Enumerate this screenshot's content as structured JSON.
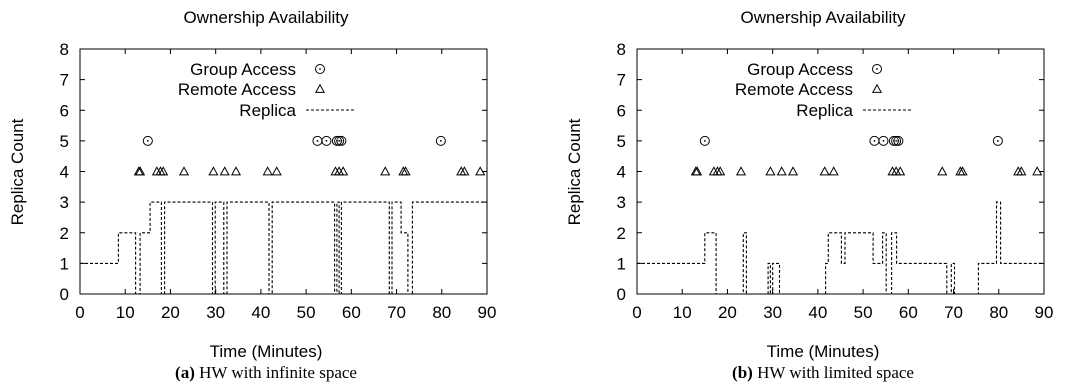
{
  "figure": {
    "panels": [
      {
        "caption_label": "(a)",
        "caption_text": "HW with infinite space"
      },
      {
        "caption_label": "(b)",
        "caption_text": "HW with limited space"
      }
    ]
  },
  "chart_data": [
    {
      "type": "scatter",
      "title": "Ownership Availability",
      "xlabel": "Time (Minutes)",
      "ylabel": "Replica Count",
      "xlim": [
        0,
        90
      ],
      "ylim": [
        0,
        8
      ],
      "xticks": [
        0,
        10,
        20,
        30,
        40,
        50,
        60,
        70,
        80,
        90
      ],
      "yticks": [
        0,
        1,
        2,
        3,
        4,
        5,
        6,
        7,
        8
      ],
      "grid": false,
      "legend_position": "top-center",
      "series": [
        {
          "name": "Group Access",
          "marker": "circle-dot",
          "x": [
            15,
            52.5,
            54.5,
            56.8,
            57.3,
            57.8,
            79.8
          ],
          "y": [
            5,
            5,
            5,
            5,
            5,
            5,
            5
          ]
        },
        {
          "name": "Remote Access",
          "marker": "triangle",
          "x": [
            13,
            13.3,
            17,
            17.8,
            18.4,
            23,
            29.5,
            32,
            34.5,
            41.5,
            43.5,
            56.5,
            57.3,
            58.2,
            67.5,
            71.5,
            72,
            84.3,
            85,
            88.5
          ],
          "y": [
            4,
            4,
            4,
            4,
            4,
            4,
            4,
            4,
            4,
            4,
            4,
            4,
            4,
            4,
            4,
            4,
            4,
            4,
            4,
            4
          ]
        },
        {
          "name": "Replica",
          "style": "dashed-step",
          "x": [
            0,
            8.5,
            8.5,
            12.3,
            12.3,
            13.3,
            13.3,
            15.5,
            15.5,
            18,
            18,
            18.7,
            18.7,
            29.3,
            29.3,
            29.9,
            29.9,
            31.8,
            31.8,
            32.5,
            32.5,
            41.8,
            41.8,
            42.5,
            42.5,
            56.3,
            56.3,
            56.8,
            56.8,
            57.3,
            57.3,
            57.8,
            57.8,
            68.4,
            68.4,
            69,
            69,
            71,
            71,
            72.5,
            72.5,
            73.5,
            73.5,
            90
          ],
          "y": [
            1,
            1,
            2,
            2,
            0,
            0,
            2,
            2,
            3,
            3,
            0,
            0,
            3,
            3,
            0,
            0,
            3,
            3,
            0,
            0,
            3,
            3,
            0,
            0,
            3,
            3,
            0,
            0,
            3,
            3,
            0,
            0,
            3,
            3,
            0,
            0,
            3,
            3,
            2,
            2,
            0,
            0,
            3,
            3
          ]
        }
      ]
    },
    {
      "type": "scatter",
      "title": "Ownership Availability",
      "xlabel": "Time (Minutes)",
      "ylabel": "Replica Count",
      "xlim": [
        0,
        90
      ],
      "ylim": [
        0,
        8
      ],
      "xticks": [
        0,
        10,
        20,
        30,
        40,
        50,
        60,
        70,
        80,
        90
      ],
      "yticks": [
        0,
        1,
        2,
        3,
        4,
        5,
        6,
        7,
        8
      ],
      "grid": false,
      "legend_position": "top-center",
      "series": [
        {
          "name": "Group Access",
          "marker": "circle-dot",
          "x": [
            15,
            52.5,
            54.5,
            56.8,
            57.3,
            57.8,
            79.8
          ],
          "y": [
            5,
            5,
            5,
            5,
            5,
            5,
            5
          ]
        },
        {
          "name": "Remote Access",
          "marker": "triangle",
          "x": [
            13,
            13.3,
            17,
            17.8,
            18.4,
            23,
            29.5,
            32,
            34.5,
            41.5,
            43.5,
            56.5,
            57.3,
            58.2,
            67.5,
            71.5,
            72,
            84.3,
            85,
            88.5
          ],
          "y": [
            4,
            4,
            4,
            4,
            4,
            4,
            4,
            4,
            4,
            4,
            4,
            4,
            4,
            4,
            4,
            4,
            4,
            4,
            4,
            4
          ]
        },
        {
          "name": "Replica",
          "style": "dashed-step",
          "x": [
            0,
            15,
            15,
            17.5,
            17.5,
            23.5,
            23.5,
            24.2,
            24.2,
            29,
            29,
            29.5,
            29.5,
            30,
            30,
            31.5,
            31.5,
            41.7,
            41.7,
            42.3,
            42.3,
            45.2,
            45.2,
            46,
            46,
            52.2,
            52.2,
            54.3,
            54.3,
            55.1,
            55.1,
            56.3,
            56.3,
            57.4,
            57.4,
            62.5,
            62.5,
            65,
            65,
            68.5,
            68.5,
            69.5,
            69.5,
            70.2,
            70.2,
            75.5,
            75.5,
            79.5,
            79.5,
            80.4,
            80.4,
            90
          ],
          "y": [
            1,
            1,
            2,
            2,
            0,
            0,
            2,
            2,
            0,
            0,
            1,
            1,
            0,
            0,
            1,
            1,
            0,
            0,
            1,
            1,
            2,
            2,
            1,
            1,
            2,
            2,
            1,
            1,
            2,
            2,
            0,
            0,
            2,
            2,
            1,
            1,
            1,
            1,
            1,
            1,
            0,
            0,
            1,
            1,
            0,
            0,
            1,
            1,
            3,
            3,
            1,
            1
          ]
        }
      ]
    }
  ]
}
